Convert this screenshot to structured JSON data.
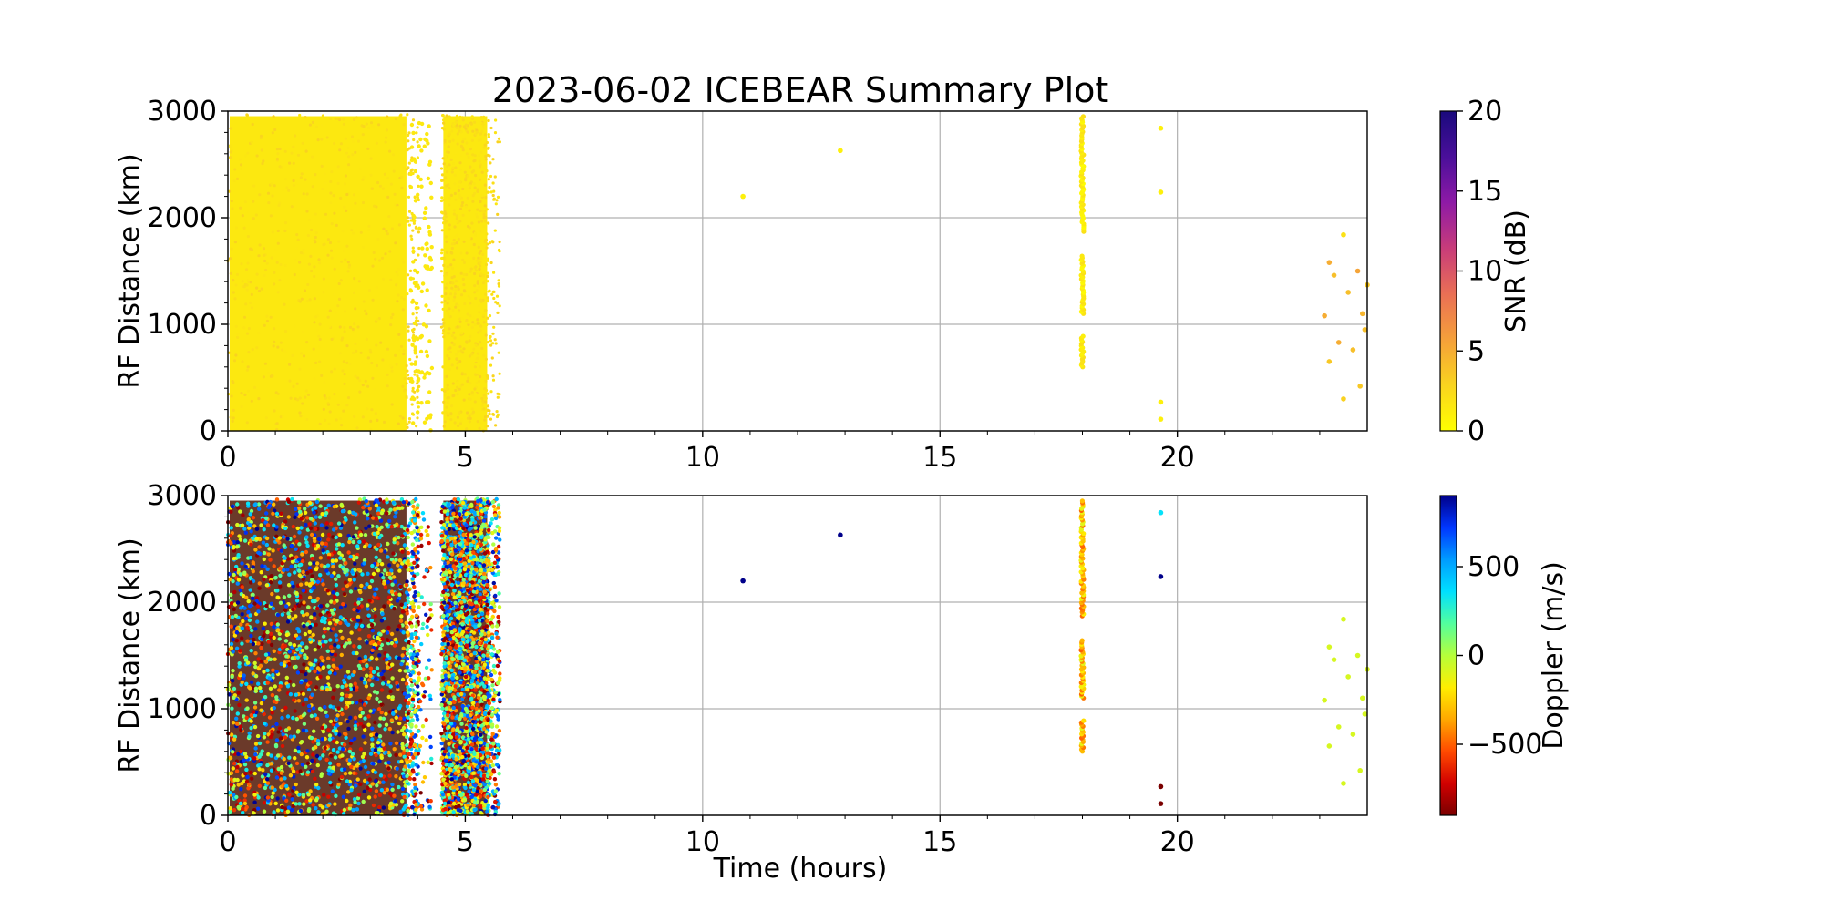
{
  "figure": {
    "title": "2023-06-02 ICEBEAR Summary Plot",
    "xlabel": "Time (hours)"
  },
  "colors": {
    "grid": "#b0b0b0",
    "axis": "#000000",
    "snr_cmap": [
      "#ffff00",
      "#f9d41f",
      "#f5a03a",
      "#ea6f55",
      "#c83c7a",
      "#8e1aa6",
      "#4a0f9a",
      "#1a0a7d"
    ],
    "doppler_cmap": [
      "#7a0000",
      "#d10000",
      "#ff4a00",
      "#ffa800",
      "#ffee00",
      "#b6ff3a",
      "#52ff9e",
      "#00e0ff",
      "#009cff",
      "#0036ff",
      "#00008a"
    ]
  },
  "chart_data": [
    {
      "type": "scatter",
      "panel": "snr",
      "xlabel": "",
      "ylabel": "RF Distance (km)",
      "xlim": [
        0,
        24
      ],
      "ylim": [
        0,
        3000
      ],
      "x_ticks": [
        "0",
        "5",
        "10",
        "15",
        "20"
      ],
      "y_ticks": [
        "0",
        "1000",
        "2000",
        "3000"
      ],
      "grid": true,
      "colorbar": {
        "label": "SNR (dB)",
        "range": [
          0,
          20
        ],
        "ticks": [
          "0",
          "5",
          "10",
          "15",
          "20"
        ]
      },
      "dense_blocks": [
        {
          "x_range": [
            0,
            3.8
          ],
          "y_range": [
            0,
            2970
          ],
          "value": 1.5
        },
        {
          "x_range": [
            4.5,
            5.5
          ],
          "y_range": [
            0,
            2970
          ],
          "value": 1.5
        }
      ],
      "points": [
        {
          "x": 10.85,
          "y": 2200,
          "v": 1.0
        },
        {
          "x": 12.9,
          "y": 2630,
          "v": 1.0
        },
        {
          "x": 19.65,
          "y": 2840,
          "v": 1.0
        },
        {
          "x": 19.65,
          "y": 2240,
          "v": 1.0
        },
        {
          "x": 19.65,
          "y": 270,
          "v": 1.0
        },
        {
          "x": 19.65,
          "y": 110,
          "v": 1.0
        },
        {
          "x": 23.2,
          "y": 1580,
          "v": 5.0
        },
        {
          "x": 23.3,
          "y": 1460,
          "v": 4.0
        },
        {
          "x": 23.5,
          "y": 1840,
          "v": 2.0
        },
        {
          "x": 23.8,
          "y": 1500,
          "v": 5.5
        },
        {
          "x": 23.6,
          "y": 1300,
          "v": 4.0
        },
        {
          "x": 23.1,
          "y": 1080,
          "v": 5.0
        },
        {
          "x": 23.9,
          "y": 1100,
          "v": 4.5
        },
        {
          "x": 23.4,
          "y": 830,
          "v": 5.0
        },
        {
          "x": 23.7,
          "y": 760,
          "v": 4.0
        },
        {
          "x": 23.2,
          "y": 650,
          "v": 3.5
        },
        {
          "x": 23.95,
          "y": 950,
          "v": 4.0
        },
        {
          "x": 23.5,
          "y": 300,
          "v": 3.0
        },
        {
          "x": 23.85,
          "y": 420,
          "v": 3.5
        },
        {
          "x": 24.0,
          "y": 1370,
          "v": 3.5
        }
      ],
      "vertical_strip": {
        "x": 18.0,
        "segments": [
          [
            1870,
            2960
          ],
          [
            1100,
            1650
          ],
          [
            600,
            900
          ]
        ],
        "value": 1.2
      }
    },
    {
      "type": "scatter",
      "panel": "doppler",
      "xlabel": "Time (hours)",
      "ylabel": "RF Distance (km)",
      "xlim": [
        0,
        24
      ],
      "ylim": [
        0,
        3000
      ],
      "x_ticks": [
        "0",
        "5",
        "10",
        "15",
        "20"
      ],
      "y_ticks": [
        "0",
        "1000",
        "2000",
        "3000"
      ],
      "grid": true,
      "colorbar": {
        "label": "Doppler (m/s)",
        "range": [
          -900,
          900
        ],
        "ticks": [
          "−500",
          "0",
          "500"
        ],
        "tick_values": [
          -500,
          0,
          500
        ]
      },
      "dense_blocks": [
        {
          "x_range": [
            0,
            3.8
          ],
          "y_range": [
            0,
            2970
          ],
          "value": "mixed"
        },
        {
          "x_range": [
            4.5,
            5.5
          ],
          "y_range": [
            0,
            2970
          ],
          "value": "mixed"
        }
      ],
      "points": [
        {
          "x": 10.85,
          "y": 2200,
          "v": 900
        },
        {
          "x": 12.9,
          "y": 2630,
          "v": 900
        },
        {
          "x": 19.65,
          "y": 2840,
          "v": 350
        },
        {
          "x": 19.65,
          "y": 2240,
          "v": 900
        },
        {
          "x": 19.65,
          "y": 270,
          "v": -900
        },
        {
          "x": 19.65,
          "y": 110,
          "v": -900
        },
        {
          "x": 23.2,
          "y": 1580,
          "v": -80
        },
        {
          "x": 23.3,
          "y": 1460,
          "v": -80
        },
        {
          "x": 23.5,
          "y": 1840,
          "v": -80
        },
        {
          "x": 23.8,
          "y": 1500,
          "v": -80
        },
        {
          "x": 23.6,
          "y": 1300,
          "v": -80
        },
        {
          "x": 23.1,
          "y": 1080,
          "v": -80
        },
        {
          "x": 23.9,
          "y": 1100,
          "v": -80
        },
        {
          "x": 23.4,
          "y": 830,
          "v": -80
        },
        {
          "x": 23.7,
          "y": 760,
          "v": -80
        },
        {
          "x": 23.2,
          "y": 650,
          "v": -80
        },
        {
          "x": 23.95,
          "y": 950,
          "v": -80
        },
        {
          "x": 23.5,
          "y": 300,
          "v": -80
        },
        {
          "x": 23.85,
          "y": 420,
          "v": -80
        },
        {
          "x": 24.0,
          "y": 1370,
          "v": -80
        }
      ],
      "vertical_strip": {
        "x": 18.0,
        "segments": [
          [
            1870,
            2960
          ],
          [
            1100,
            1650
          ],
          [
            600,
            900
          ]
        ],
        "value": -300
      }
    }
  ]
}
